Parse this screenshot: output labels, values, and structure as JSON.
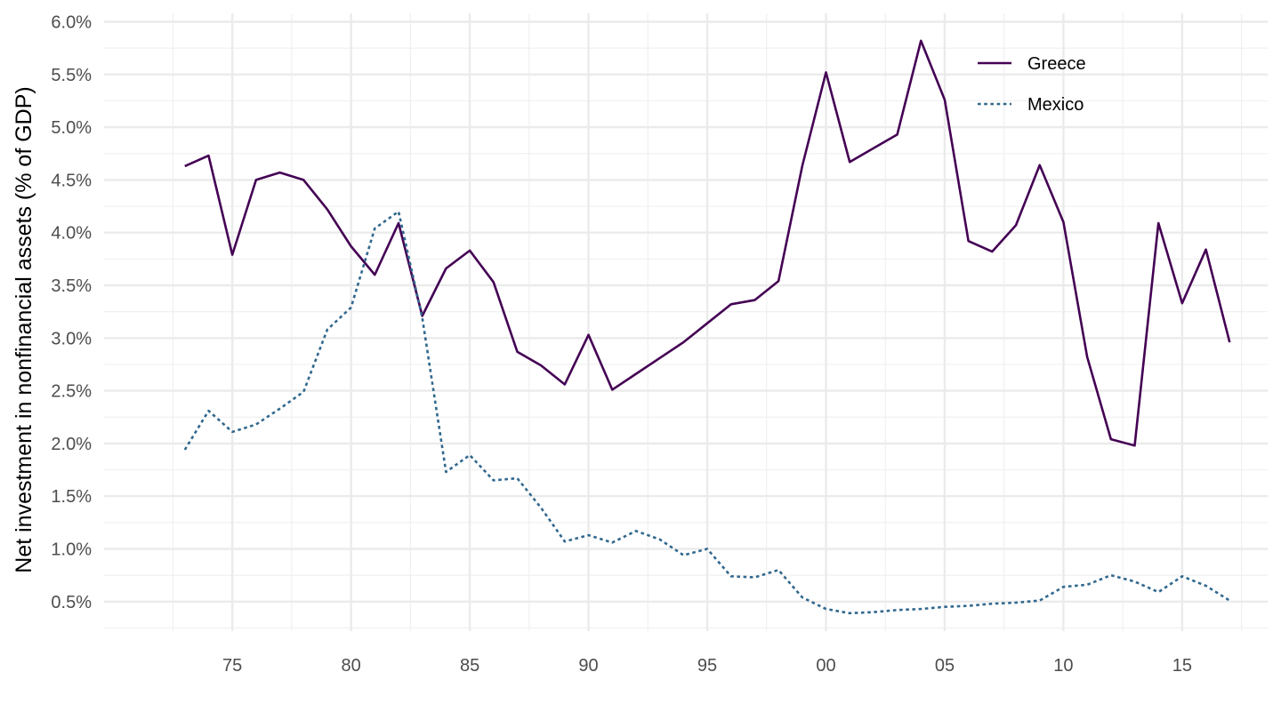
{
  "chart_data": {
    "type": "line",
    "title": "",
    "xlabel": "",
    "ylabel": "Net investment in nonfinancial assets (% of GDP)",
    "x": [
      1973,
      1974,
      1975,
      1976,
      1977,
      1978,
      1979,
      1980,
      1981,
      1982,
      1983,
      1984,
      1985,
      1986,
      1987,
      1988,
      1989,
      1990,
      1991,
      1992,
      1993,
      1994,
      1995,
      1996,
      1997,
      1998,
      1999,
      2000,
      2001,
      2002,
      2003,
      2004,
      2005,
      2006,
      2007,
      2008,
      2009,
      2010,
      2011,
      2012,
      2013,
      2014,
      2015,
      2016,
      2017
    ],
    "xlim": [
      1969.6,
      2018.6
    ],
    "ylim": [
      0.22,
      6.08
    ],
    "x_ticks": [
      1975,
      1980,
      1985,
      1990,
      1995,
      2000,
      2005,
      2010,
      2015
    ],
    "x_tick_labels": [
      "75",
      "80",
      "85",
      "90",
      "95",
      "00",
      "05",
      "10",
      "15"
    ],
    "y_ticks": [
      0.5,
      1.0,
      1.5,
      2.0,
      2.5,
      3.0,
      3.5,
      4.0,
      4.5,
      5.0,
      5.5,
      6.0
    ],
    "y_tick_labels": [
      "0.5%",
      "1.0%",
      "1.5%",
      "2.0%",
      "2.5%",
      "3.0%",
      "3.5%",
      "4.0%",
      "4.5%",
      "5.0%",
      "5.5%",
      "6.0%"
    ],
    "grid": true,
    "legend_position": "top-right",
    "series": [
      {
        "name": "Greece",
        "color": "#440154",
        "dash": "solid",
        "values": [
          4.63,
          4.73,
          3.79,
          4.5,
          4.57,
          4.5,
          4.22,
          3.87,
          3.6,
          4.09,
          3.21,
          3.66,
          3.83,
          3.53,
          2.87,
          2.74,
          2.56,
          3.03,
          2.51,
          2.66,
          2.81,
          2.96,
          3.14,
          3.32,
          3.36,
          3.54,
          4.63,
          5.52,
          4.67,
          4.8,
          4.93,
          5.82,
          5.26,
          3.92,
          3.82,
          4.07,
          4.64,
          4.1,
          2.82,
          2.04,
          1.98,
          4.09,
          3.33,
          3.84,
          2.96
        ]
      },
      {
        "name": "Mexico",
        "color": "#31688e",
        "dash": "dotted",
        "values": [
          1.94,
          2.31,
          2.11,
          2.18,
          2.33,
          2.49,
          3.08,
          3.29,
          4.04,
          4.2,
          3.19,
          1.73,
          1.89,
          1.65,
          1.67,
          1.39,
          1.07,
          1.13,
          1.06,
          1.17,
          1.09,
          0.94,
          1.0,
          0.74,
          0.73,
          0.8,
          0.54,
          0.43,
          0.39,
          0.4,
          0.42,
          0.43,
          0.45,
          0.46,
          0.48,
          0.49,
          0.51,
          0.64,
          0.66,
          0.75,
          0.69,
          0.59,
          0.74,
          0.65,
          0.51
        ]
      }
    ]
  }
}
